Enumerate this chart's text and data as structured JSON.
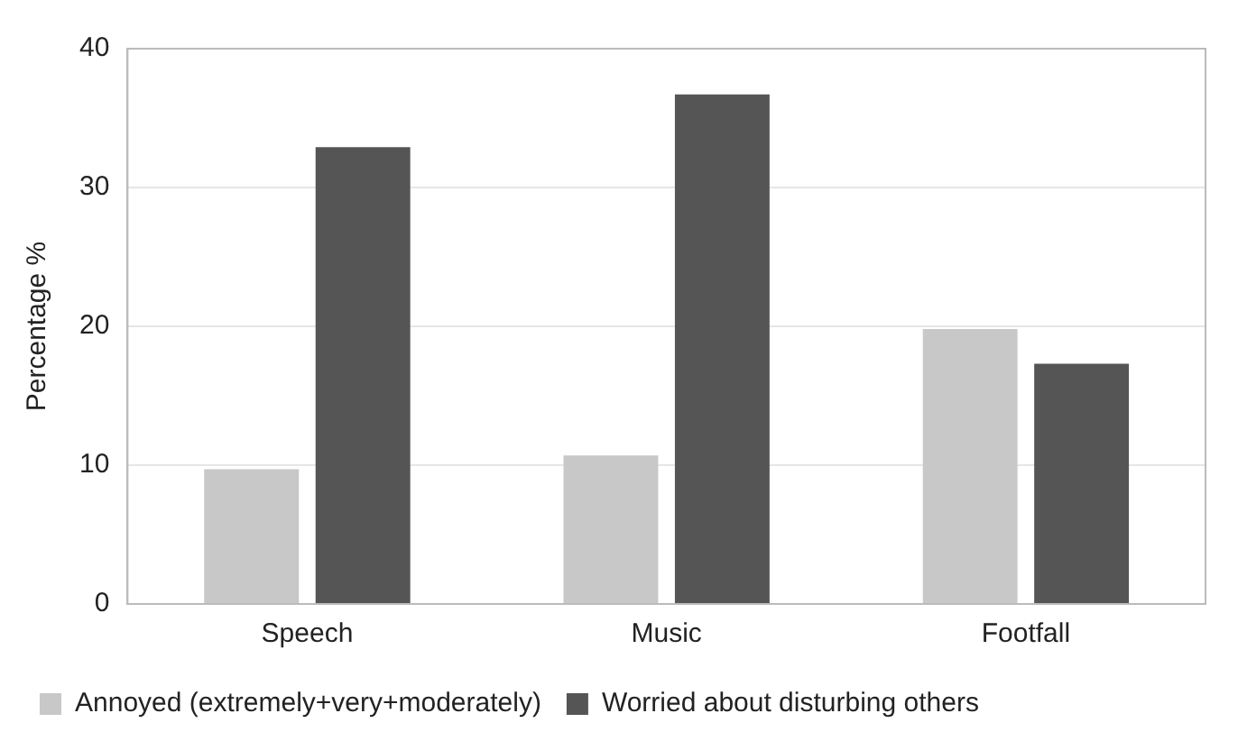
{
  "chart_data": {
    "type": "bar",
    "ylabel": "Percentage %",
    "categories": [
      "Speech",
      "Music",
      "Footfall"
    ],
    "series": [
      {
        "name": "Annoyed (extremely+very+moderately)",
        "color": "#c8c8c8",
        "values": [
          9.7,
          10.7,
          19.8
        ]
      },
      {
        "name": "Worried about disturbing others",
        "color": "#555555",
        "values": [
          32.9,
          36.7,
          17.3
        ]
      }
    ],
    "ylim": [
      0,
      40
    ],
    "yticks": [
      0,
      10,
      20,
      30,
      40
    ],
    "grid": "y",
    "legend": "bottom"
  }
}
